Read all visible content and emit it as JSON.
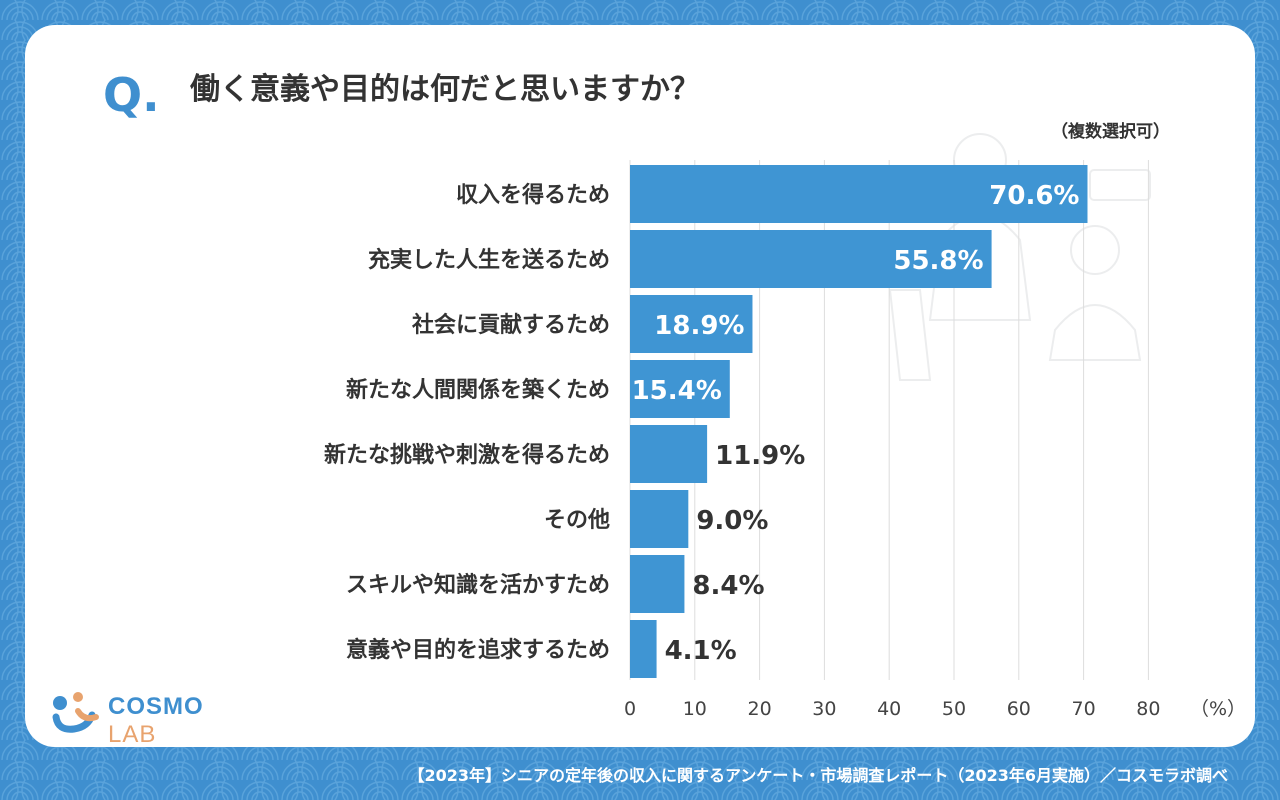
{
  "question": {
    "mark": "Q.",
    "title": "働く意義や目的は何だと思いますか？",
    "note": "（複数選択可）"
  },
  "chart_data": {
    "type": "bar",
    "orientation": "horizontal",
    "categories": [
      "収入を得るため",
      "充実した人生を送るため",
      "社会に貢献するため",
      "新たな人間関係を築くため",
      "新たな挑戦や刺激を得るため",
      "その他",
      "スキルや知識を活かすため",
      "意義や目的を追求するため"
    ],
    "values": [
      70.6,
      55.8,
      18.9,
      15.4,
      11.9,
      9.0,
      8.4,
      4.1
    ],
    "value_labels": [
      "70.6%",
      "55.8%",
      "18.9%",
      "15.4%",
      "11.9%",
      "9.0%",
      "8.4%",
      "4.1%"
    ],
    "xlim": [
      0,
      80
    ],
    "xticks": [
      "0",
      "10",
      "20",
      "30",
      "40",
      "50",
      "60",
      "70",
      "80"
    ],
    "unit_label": "（%）",
    "grid": true,
    "bar_color": "#3f95d3"
  },
  "logo": {
    "main": "COSMO",
    "sub": "LAB"
  },
  "footer": "【2023年】シニアの定年後の収入に関するアンケート・市場調査レポート（2023年6月実施）／コスモラボ調べ",
  "colors": {
    "background": "#3f8fcf",
    "accent": "#3f95d3",
    "logo_orange": "#e8a36e"
  }
}
